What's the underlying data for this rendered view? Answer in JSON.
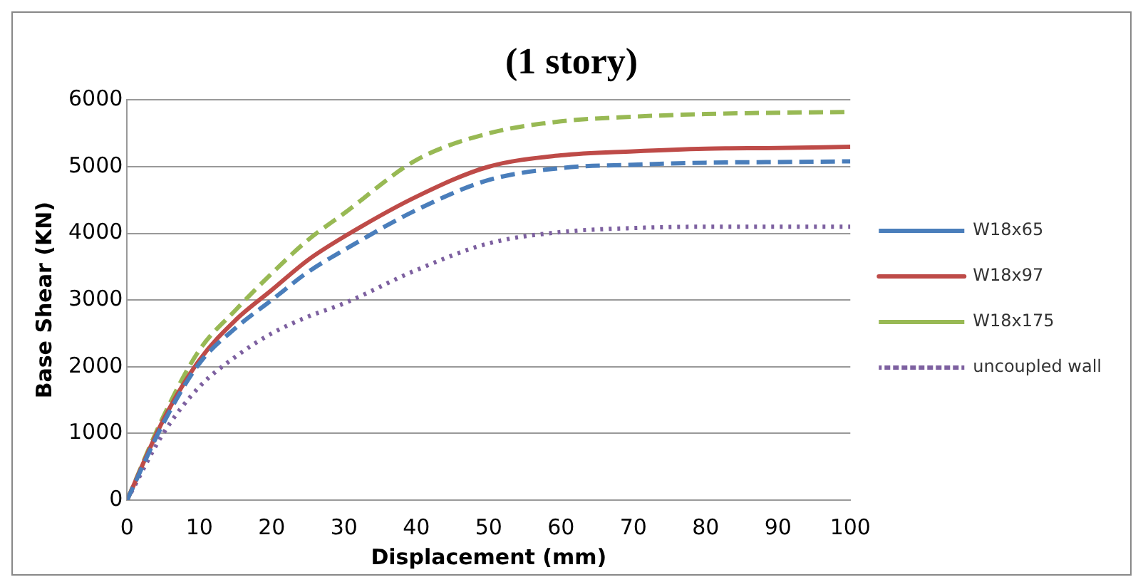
{
  "chart_data": {
    "type": "line",
    "title": "(1 story)",
    "xlabel": "Displacement (mm)",
    "ylabel": "Base Shear (KN)",
    "x": [
      0,
      5,
      10,
      15,
      20,
      25,
      30,
      40,
      50,
      60,
      70,
      80,
      90,
      100
    ],
    "series": [
      {
        "name": "W18x65",
        "color": "#4a7ebb",
        "line_style": "dashed",
        "values": [
          0,
          1150,
          2050,
          2580,
          3000,
          3420,
          3750,
          4350,
          4800,
          4980,
          5030,
          5060,
          5070,
          5080
        ]
      },
      {
        "name": "W18x97",
        "color": "#be4b48",
        "line_style": "solid",
        "values": [
          0,
          1200,
          2100,
          2700,
          3150,
          3600,
          3950,
          4550,
          5000,
          5170,
          5230,
          5270,
          5280,
          5300
        ]
      },
      {
        "name": "W18x175",
        "color": "#98b954",
        "line_style": "dashed",
        "values": [
          0,
          1250,
          2250,
          2850,
          3400,
          3900,
          4300,
          5100,
          5500,
          5680,
          5750,
          5790,
          5810,
          5820
        ]
      },
      {
        "name": "uncoupled wall",
        "color": "#7d60a0",
        "line_style": "dotted",
        "values": [
          0,
          1000,
          1700,
          2150,
          2500,
          2750,
          2950,
          3450,
          3850,
          4020,
          4080,
          4100,
          4100,
          4100
        ]
      }
    ],
    "xlim": [
      0,
      100
    ],
    "xticks": [
      0,
      10,
      20,
      30,
      40,
      50,
      60,
      70,
      80,
      90,
      100
    ],
    "ylim": [
      0,
      6000
    ],
    "yticks": [
      0,
      1000,
      2000,
      3000,
      4000,
      5000,
      6000
    ],
    "grid": "y",
    "legend": "right",
    "marker": "none"
  }
}
